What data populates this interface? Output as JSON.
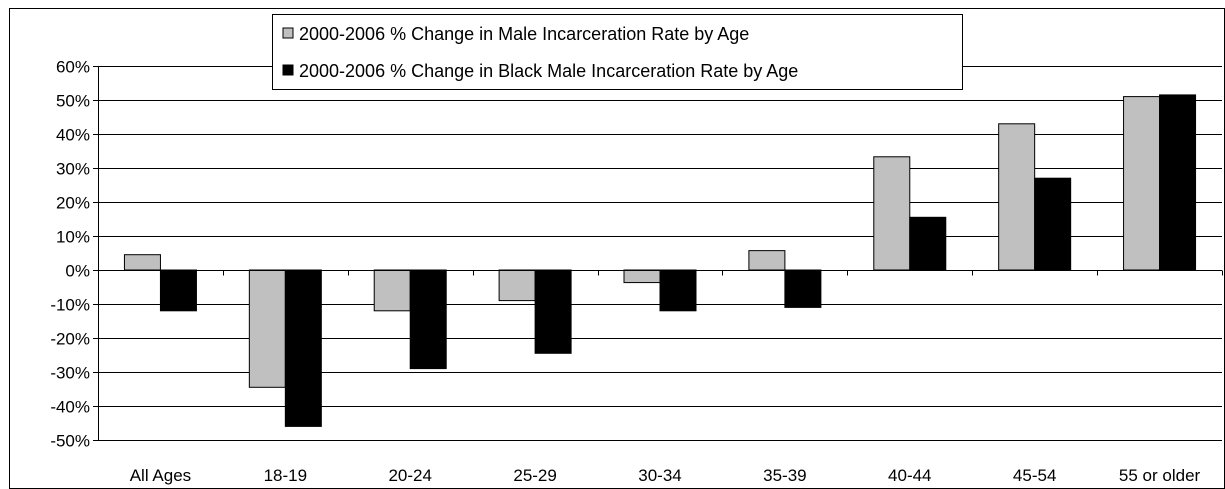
{
  "chart_data": {
    "type": "bar",
    "title": "",
    "xlabel": "",
    "ylabel": "",
    "ylim": [
      -0.5,
      0.6
    ],
    "ytick_step": 0.1,
    "yticks": [
      "-50%",
      "-40%",
      "-30%",
      "-20%",
      "-10%",
      "0%",
      "10%",
      "20%",
      "30%",
      "40%",
      "50%",
      "60%"
    ],
    "grid": true,
    "legend_position": "top-center",
    "categories": [
      "All Ages",
      "18-19",
      "20-24",
      "25-29",
      "30-34",
      "35-39",
      "40-44",
      "45-54",
      "55 or older"
    ],
    "series": [
      {
        "name": "2000-2006 % Change in Male Incarceration Rate by Age",
        "color": "#c0c0c0",
        "values": [
          0.045,
          -0.345,
          -0.12,
          -0.09,
          -0.037,
          0.057,
          0.333,
          0.43,
          0.51
        ]
      },
      {
        "name": "2000-2006 % Change in Black Male Incarceration Rate by Age",
        "color": "#000000",
        "values": [
          -0.12,
          -0.46,
          -0.29,
          -0.245,
          -0.12,
          -0.11,
          0.155,
          0.27,
          0.515
        ]
      }
    ]
  }
}
